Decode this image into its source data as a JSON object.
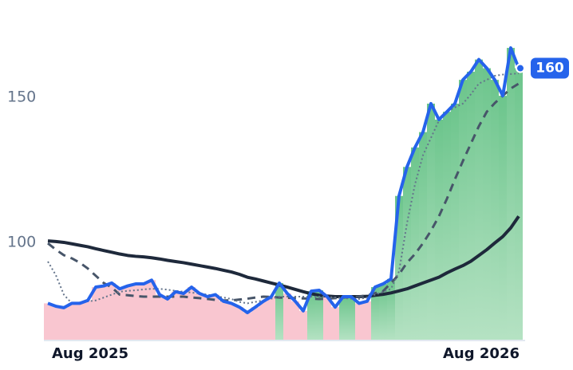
{
  "chart_data": {
    "type": "line",
    "categories": [
      null,
      null,
      null,
      null,
      null,
      "Aug 2025",
      null,
      null,
      null,
      null,
      null,
      null,
      null,
      null,
      null,
      null,
      null,
      null,
      null,
      null,
      null,
      null,
      null,
      null,
      null,
      null,
      null,
      null,
      null,
      null,
      null,
      null,
      null,
      null,
      null,
      null,
      null,
      null,
      null,
      null,
      null,
      null,
      null,
      null,
      null,
      null,
      null,
      null,
      null,
      null,
      null,
      null,
      null,
      null,
      "Aug 2026",
      null,
      null,
      null,
      null,
      null
    ],
    "series": [
      {
        "color": "#2563eb",
        "values": [
          79,
          78,
          77.5,
          79,
          79,
          80,
          84.6,
          85,
          86,
          84,
          85,
          85.7,
          85.7,
          87,
          82,
          80.5,
          83,
          82.4,
          84.6,
          82.4,
          81.3,
          82,
          79.7,
          79,
          77.7,
          75.8,
          77.7,
          79.7,
          81.3,
          86,
          82.4,
          79.7,
          76.4,
          83.2,
          83.5,
          81.3,
          77.7,
          81.3,
          81.3,
          79,
          79.7,
          84.6,
          85.7,
          87.4,
          116,
          126,
          132.7,
          138,
          147.8,
          142.3,
          145,
          147.8,
          156,
          158.8,
          163,
          160,
          156,
          150.5,
          167,
          160
        ]
      },
      {
        "color": "#64748b",
        "values": [
          93.4,
          88.7,
          82,
          79,
          79.3,
          79.7,
          80,
          81,
          82,
          83,
          83.3,
          83.5,
          83.8,
          84,
          84,
          83.7,
          83.3,
          83,
          82.7,
          82.4,
          82,
          81.5,
          81,
          80.5,
          79.5,
          79,
          79.5,
          80,
          80.6,
          81.3,
          81.3,
          81.3,
          81.3,
          81.3,
          81.3,
          81.2,
          81,
          80.8,
          80.6,
          80.5,
          81,
          82,
          83,
          84,
          90,
          106.6,
          120,
          130,
          136,
          142,
          145,
          146.5,
          147.8,
          151,
          154.7,
          156,
          157.4,
          157.8,
          158,
          158.2
        ]
      },
      {
        "color": "#475569",
        "values": [
          99.7,
          97.5,
          95.6,
          94.5,
          93,
          91,
          88.5,
          86,
          84.5,
          82,
          81.8,
          81.5,
          81.3,
          81.3,
          81.3,
          81.3,
          81.3,
          81.3,
          81,
          80.8,
          80.5,
          80.2,
          80,
          80,
          80.3,
          80.6,
          81,
          81.3,
          81.2,
          81,
          80.9,
          80.8,
          80.7,
          80.6,
          80.5,
          80.6,
          80.8,
          81,
          81.2,
          81.3,
          81.8,
          82.5,
          83.2,
          86,
          89,
          93,
          96,
          99.7,
          104,
          109,
          115,
          121.7,
          128,
          134,
          140,
          145,
          148,
          150.5,
          153,
          154.7
        ]
      },
      {
        "color": "#1e293b",
        "values": [
          100.5,
          100.3,
          100,
          99.5,
          99,
          98.5,
          97.8,
          97.2,
          96.6,
          96,
          95.5,
          95.2,
          95,
          94.7,
          94.3,
          93.8,
          93.4,
          93,
          92.5,
          92,
          91.5,
          91,
          90.4,
          89.8,
          89,
          88,
          87.4,
          86.7,
          86,
          85.3,
          84.6,
          83.8,
          83,
          82.3,
          81.8,
          81.5,
          81.3,
          81.3,
          81.3,
          81.3,
          81.4,
          81.8,
          82.1,
          82.6,
          83.3,
          84,
          85,
          86,
          87,
          88,
          89.5,
          90.8,
          92,
          93.5,
          95.5,
          97.5,
          99.8,
          102,
          105,
          109
        ]
      }
    ],
    "ylim": [
      66.2,
      183.5
    ],
    "yticks": [
      100,
      150
    ]
  }
}
